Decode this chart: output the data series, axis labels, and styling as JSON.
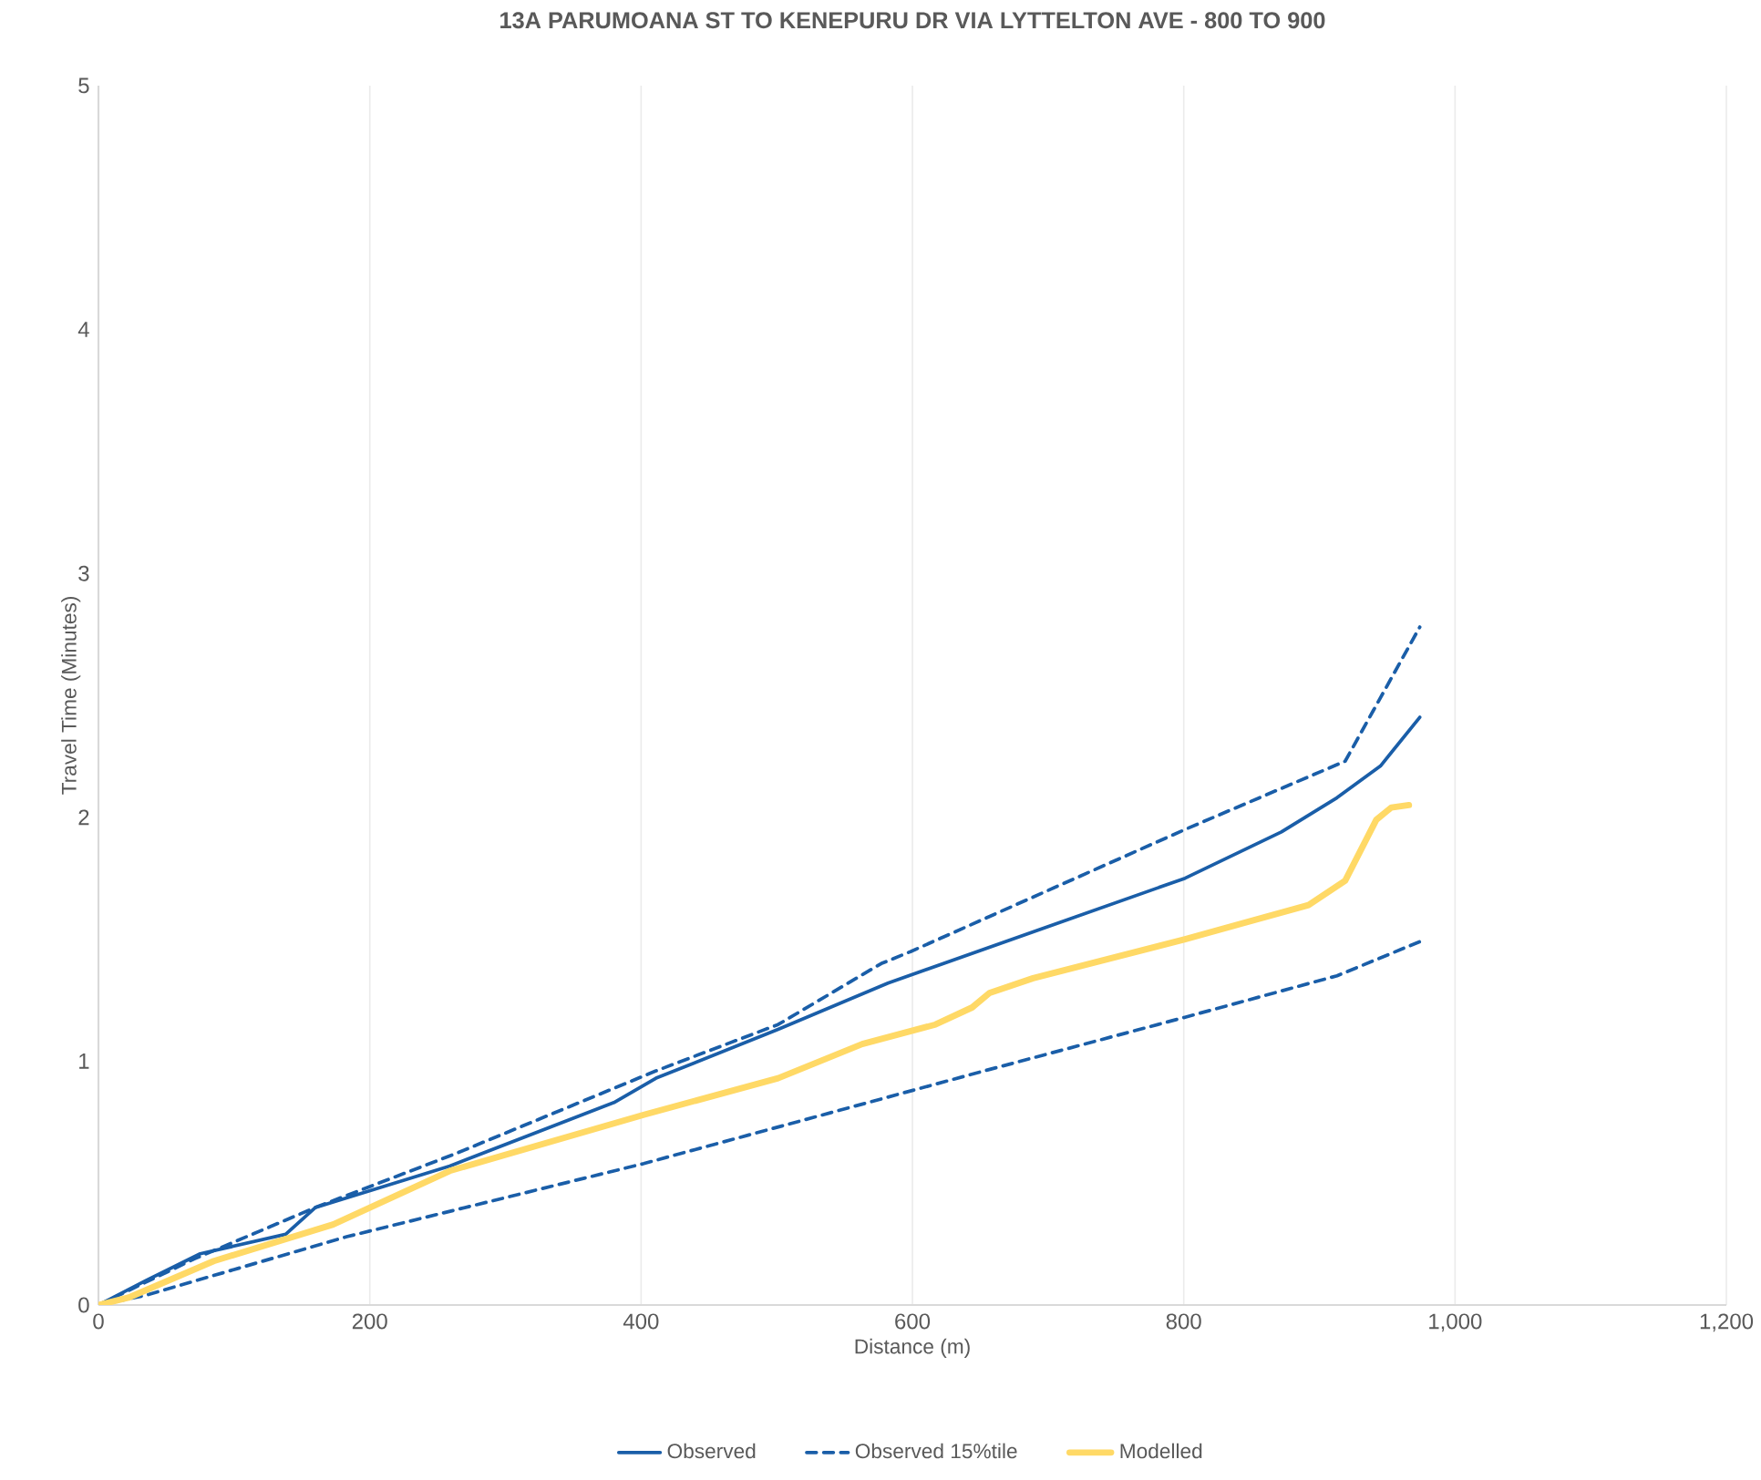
{
  "chart_data": {
    "type": "line",
    "title": "13A PARUMOANA ST TO KENEPURU DR VIA LYTTELTON AVE - 800 TO 900",
    "xlabel": "Distance (m)",
    "ylabel": "Travel Time (Minutes)",
    "xlim": [
      0,
      1200
    ],
    "ylim": [
      0,
      5
    ],
    "xticks": [
      0,
      200,
      400,
      600,
      800,
      {
        "value": 1000,
        "label": "1,000"
      },
      {
        "value": 1200,
        "label": "1,200"
      }
    ],
    "yticks": [
      0,
      1,
      2,
      3,
      4,
      5
    ],
    "grid": "x",
    "legend": "bottom",
    "marker": "none",
    "series": [
      {
        "name": "Observed",
        "color": "#1a5ea8",
        "line_style": "solid",
        "x": [
          0,
          35,
          75,
          138,
          160,
          259,
          380,
          411,
          501,
          582,
          801,
          872,
          913,
          945,
          974
        ],
        "values": [
          0,
          0.1,
          0.21,
          0.29,
          0.4,
          0.57,
          0.83,
          0.93,
          1.13,
          1.32,
          1.75,
          1.94,
          2.08,
          2.21,
          2.41
        ]
      },
      {
        "name": "Observed 15%tile",
        "color": "#1a5ea8",
        "line_style": "dashed",
        "x": [
          0,
          35,
          183,
          402,
          653,
          801,
          913,
          974
        ],
        "values": [
          0,
          0.04,
          0.28,
          0.58,
          0.96,
          1.18,
          1.35,
          1.49
        ]
      },
      {
        "color": "#1a5ea8",
        "line_style": "dashed",
        "x": [
          0,
          71,
          160,
          263,
          411,
          501,
          577,
          599,
          801,
          919,
          940,
          974
        ],
        "values": [
          0,
          0.19,
          0.4,
          0.62,
          0.96,
          1.15,
          1.4,
          1.45,
          1.95,
          2.23,
          2.44,
          2.78
        ]
      },
      {
        "name": "Modelled",
        "color": "#ffd966",
        "line_style": "solid",
        "x": [
          0,
          22,
          85,
          173,
          259,
          402,
          501,
          563,
          617,
          644,
          657,
          689,
          801,
          892,
          919,
          942,
          953,
          966
        ],
        "values": [
          0,
          0.03,
          0.18,
          0.33,
          0.55,
          0.78,
          0.93,
          1.07,
          1.15,
          1.22,
          1.28,
          1.34,
          1.5,
          1.64,
          1.74,
          1.99,
          2.04,
          2.05
        ]
      }
    ]
  }
}
